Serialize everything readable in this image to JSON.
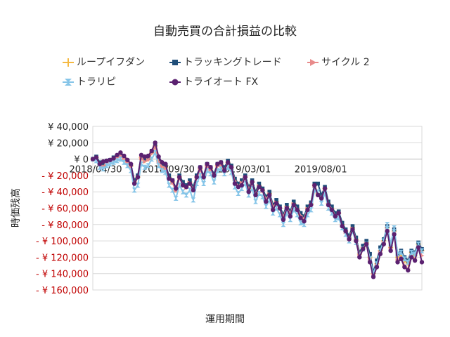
{
  "chart_data": {
    "type": "line",
    "title": "自動売買の合計損益の比較",
    "xlabel": "運用期間",
    "ylabel": "時価残高",
    "ylim": [
      -160000,
      40000
    ],
    "yticks": [
      40000,
      20000,
      0,
      -20000,
      -40000,
      -60000,
      -80000,
      -100000,
      -120000,
      -140000,
      -160000
    ],
    "ytick_labels": [
      "¥ 40,000",
      "¥ 20,000",
      "¥ 0",
      "- ¥ 20,000",
      "- ¥ 40,000",
      "- ¥ 60,000",
      "- ¥ 80,000",
      "- ¥ 100,000",
      "- ¥ 120,000",
      "- ¥ 140,000",
      "- ¥ 160,000"
    ],
    "negative_tick_color": "#c00000",
    "x_tick_labels": [
      {
        "label": "2018/04/30",
        "index": 0
      },
      {
        "label": "2018/09/30",
        "index": 21
      },
      {
        "label": "2019/03/01",
        "index": 43
      },
      {
        "label": "2019/08/01",
        "index": 65
      }
    ],
    "grid": true,
    "legend_position": "top",
    "series": [
      {
        "name": "ループイフダン",
        "color": "#f5b942",
        "marker": "plus",
        "values": [
          0,
          2000,
          -5000,
          -8000,
          -3000,
          -2000,
          0,
          3000,
          5000,
          2000,
          -3000,
          -8000,
          -28000,
          -22000,
          2000,
          -2000,
          0,
          8000,
          16000,
          -2000,
          -8000,
          -10000,
          -22000,
          -28000,
          -38000,
          -22000,
          -30000,
          -34000,
          -28000,
          -36000,
          -22000,
          -12000,
          -22000,
          -8000,
          -12000,
          -20000,
          -8000,
          -6000,
          -12000,
          -4000,
          -10000,
          -26000,
          -32000,
          -28000,
          -22000,
          -36000,
          -28000,
          -42000,
          -32000,
          -38000,
          -48000,
          -42000,
          -58000,
          -52000,
          -60000,
          -70000,
          -58000,
          -66000,
          -54000,
          -60000,
          -68000,
          -72000,
          -60000,
          -55000,
          -32000,
          -42000,
          -46000,
          -36000,
          -54000,
          -60000,
          -68000,
          -66000,
          -80000,
          -88000,
          -96000,
          -84000,
          -98000,
          -116000,
          -108000,
          -102000,
          -120000,
          -140000,
          -128000,
          -112000,
          -100000,
          -84000,
          -108000,
          -88000,
          -120000,
          -116000,
          -124000,
          -128000,
          -114000,
          -118000,
          -104000,
          -112000
        ]
      },
      {
        "name": "トラッキングトレード",
        "color": "#1f4e79",
        "marker": "square",
        "values": [
          0,
          3000,
          -4000,
          -7000,
          -2000,
          -1000,
          2000,
          4000,
          7000,
          3000,
          -2000,
          -7000,
          -26000,
          -20000,
          4000,
          0,
          2000,
          10000,
          18000,
          0,
          -6000,
          -8000,
          -20000,
          -26000,
          -35000,
          -20000,
          -28000,
          -32000,
          -26000,
          -34000,
          -20000,
          -10000,
          -20000,
          -6000,
          -10000,
          -18000,
          -6000,
          -4000,
          -10000,
          -2000,
          -8000,
          -24000,
          -30000,
          -26000,
          -20000,
          -34000,
          -26000,
          -40000,
          -30000,
          -36000,
          -46000,
          -40000,
          -56000,
          -50000,
          -58000,
          -68000,
          -56000,
          -64000,
          -52000,
          -58000,
          -66000,
          -70000,
          -58000,
          -53000,
          -30000,
          -30000,
          -44000,
          -34000,
          -52000,
          -58000,
          -66000,
          -64000,
          -78000,
          -86000,
          -94000,
          -82000,
          -96000,
          -114000,
          -106000,
          -100000,
          -116000,
          -138000,
          -124000,
          -108000,
          -98000,
          -82000,
          -104000,
          -86000,
          -116000,
          -112000,
          -120000,
          -124000,
          -112000,
          -114000,
          -102000,
          -110000
        ]
      },
      {
        "name": "サイクル 2",
        "color": "#e88b8b",
        "marker": "triangle",
        "values": [
          0,
          1000,
          -6000,
          -9000,
          -4000,
          -3000,
          -1000,
          2000,
          4000,
          1000,
          -4000,
          -9000,
          -29000,
          -23000,
          1000,
          -3000,
          -1000,
          7000,
          15000,
          -3000,
          -9000,
          -11000,
          -23000,
          -29000,
          -39000,
          -23000,
          -31000,
          -35000,
          -29000,
          -37000,
          -23000,
          -13000,
          -23000,
          -9000,
          -13000,
          -21000,
          -9000,
          -7000,
          -13000,
          -5000,
          -11000,
          -27000,
          -33000,
          -29000,
          -23000,
          -37000,
          -29000,
          -43000,
          -33000,
          -39000,
          -49000,
          -43000,
          -59000,
          -53000,
          -61000,
          -71000,
          -59000,
          -67000,
          -55000,
          -61000,
          -69000,
          -73000,
          -61000,
          -56000,
          -33000,
          -43000,
          -47000,
          -37000,
          -55000,
          -61000,
          -69000,
          -67000,
          -81000,
          -89000,
          -97000,
          -85000,
          -99000,
          -117000,
          -109000,
          -103000,
          -122000,
          -142000,
          -130000,
          -114000,
          -102000,
          -86000,
          -110000,
          -90000,
          -124000,
          -120000,
          -130000,
          -134000,
          -118000,
          -122000,
          -108000,
          -118000
        ]
      },
      {
        "name": "トラリピ",
        "color": "#86c5e8",
        "marker": "hourglass",
        "values": [
          0,
          -2000,
          -10000,
          -12000,
          -8000,
          -6000,
          -4000,
          -2000,
          0,
          -4000,
          -8000,
          -14000,
          -38000,
          -32000,
          -6000,
          -10000,
          -8000,
          0,
          8000,
          -8000,
          -14000,
          -16000,
          -32000,
          -38000,
          -48000,
          -32000,
          -40000,
          -44000,
          -38000,
          -50000,
          -30000,
          -20000,
          -30000,
          -14000,
          -18000,
          -28000,
          -14000,
          -12000,
          -18000,
          -10000,
          -16000,
          -34000,
          -42000,
          -36000,
          -30000,
          -44000,
          -36000,
          -52000,
          -42000,
          -46000,
          -58000,
          -50000,
          -66000,
          -60000,
          -68000,
          -80000,
          -66000,
          -74000,
          -62000,
          -68000,
          -78000,
          -80000,
          -68000,
          -62000,
          -38000,
          -40000,
          -54000,
          -42000,
          -60000,
          -66000,
          -74000,
          -72000,
          -84000,
          -92000,
          -100000,
          -88000,
          -102000,
          -118000,
          -110000,
          -104000,
          -122000,
          -140000,
          -128000,
          -112000,
          -100000,
          -80000,
          -104000,
          -84000,
          -116000,
          -114000,
          -122000,
          -126000,
          -114000,
          -116000,
          -104000,
          -112000
        ]
      },
      {
        "name": "トライオート FX",
        "color": "#5b2170",
        "marker": "circle",
        "values": [
          0,
          2000,
          -6000,
          -3000,
          -2000,
          -1000,
          1000,
          5000,
          8000,
          4000,
          -1000,
          -6000,
          -30000,
          -22000,
          5000,
          3000,
          4000,
          10000,
          20000,
          3000,
          -4000,
          -6000,
          -24000,
          -26000,
          -36000,
          -22000,
          -32000,
          -34000,
          -30000,
          -38000,
          -22000,
          -10000,
          -22000,
          -6000,
          -10000,
          -20000,
          -6000,
          -4000,
          -14000,
          -4000,
          -10000,
          -30000,
          -34000,
          -32000,
          -22000,
          -40000,
          -28000,
          -44000,
          -34000,
          -38000,
          -52000,
          -44000,
          -62000,
          -54000,
          -60000,
          -74000,
          -60000,
          -70000,
          -56000,
          -62000,
          -72000,
          -76000,
          -62000,
          -56000,
          -32000,
          -44000,
          -48000,
          -36000,
          -56000,
          -62000,
          -70000,
          -66000,
          -82000,
          -88000,
          -98000,
          -86000,
          -100000,
          -120000,
          -110000,
          -104000,
          -126000,
          -144000,
          -132000,
          -116000,
          -104000,
          -88000,
          -112000,
          -92000,
          -126000,
          -122000,
          -132000,
          -136000,
          -120000,
          -124000,
          -108000,
          -126000
        ]
      }
    ]
  }
}
